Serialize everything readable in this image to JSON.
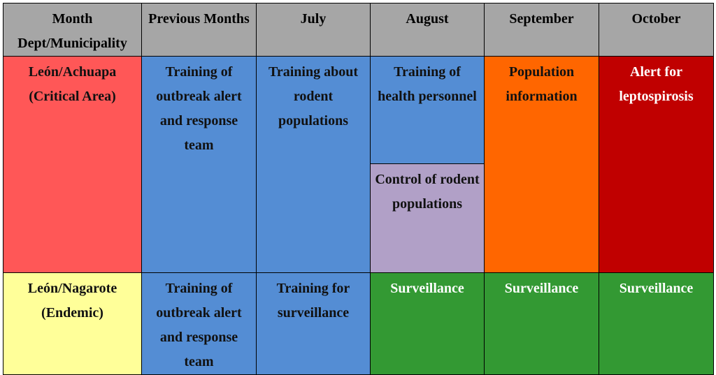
{
  "headers": {
    "col1_line1": "Month",
    "col1_line2": "Dept/Municipality",
    "col2": "Previous Months",
    "col3": "July",
    "col4": "August",
    "col5": "September",
    "col6": "October"
  },
  "rows": [
    {
      "region": "León/Achuapa (Critical Area)",
      "previous": "Training of outbreak alert and response team",
      "july": "Training about rodent populations",
      "august_top": "Training of health personnel",
      "august_bottom": "Control of rodent populations",
      "september": "Population information",
      "october": "Alert for leptospirosis"
    },
    {
      "region": "León/Nagarote (Endemic)",
      "previous": "Training of outbreak alert and response team",
      "july": "Training for surveillance",
      "august": "Surveillance",
      "september": "Surveillance",
      "october": "Surveillance"
    }
  ],
  "colors": {
    "header": "#a6a6a6",
    "critical_area": "#ff5757",
    "endemic": "#ffff99",
    "training": "#548dd4",
    "control": "#b1a0c7",
    "information": "#ff6600",
    "alert": "#c00000",
    "surveillance": "#339933"
  }
}
